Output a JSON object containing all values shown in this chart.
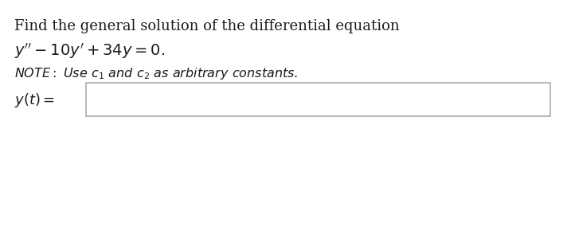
{
  "line1": "Find the general solution of the differential equation",
  "line2": "$y'' - 10y' + 34y = 0.$",
  "label": "$y(t) =$",
  "bg_color": "#ffffff",
  "box_bg": "#ffffff",
  "box_edge_color": "#aaaaaa",
  "text_color": "#1a1a1a",
  "font_size_main": 13,
  "font_size_note": 11.5,
  "font_size_label": 13
}
